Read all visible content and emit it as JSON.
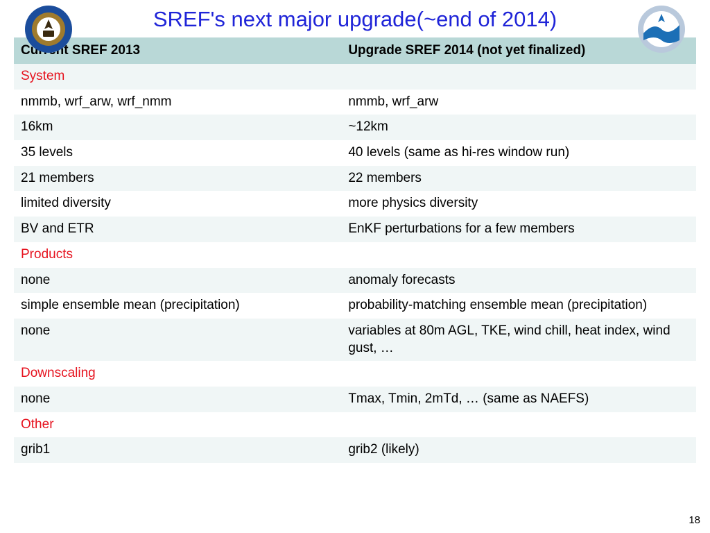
{
  "title": "SREF's next major upgrade(~end of 2014)",
  "title_color": "#1f24d8",
  "page_number": "18",
  "colors": {
    "header_bg": "#b9d8d7",
    "row_even": "#f0f6f6",
    "row_odd": "#ffffff",
    "section": "#e6131f",
    "text": "#000000"
  },
  "logos": {
    "left": {
      "outer": "#1b4d9c",
      "inner": "#9f7b2e",
      "center": "#ffffff"
    },
    "right": {
      "ring": "#b9c9dc",
      "wave": "#1c6fb6",
      "white": "#ffffff"
    }
  },
  "table": {
    "headers": [
      "Current SREF 2013",
      "Upgrade SREF 2014 (not yet finalized)"
    ],
    "rows": [
      {
        "type": "section",
        "left": "System",
        "right": ""
      },
      {
        "type": "data",
        "left": "nmmb, wrf_arw, wrf_nmm",
        "right": "nmmb, wrf_arw"
      },
      {
        "type": "data",
        "left": "16km",
        "right": "~12km"
      },
      {
        "type": "data",
        "left": "35 levels",
        "right": "40 levels (same as hi-res window run)"
      },
      {
        "type": "data",
        "left": "21 members",
        "right": "22 members"
      },
      {
        "type": "data",
        "left": "limited diversity",
        "right": "more physics diversity"
      },
      {
        "type": "data",
        "left": "BV and ETR",
        "right": "EnKF perturbations for a few members"
      },
      {
        "type": "section",
        "left": "Products",
        "right": ""
      },
      {
        "type": "data",
        "left": "none",
        "right": "anomaly forecasts"
      },
      {
        "type": "data",
        "left": "simple ensemble mean (precipitation)",
        "right": "probability-matching ensemble mean (precipitation)"
      },
      {
        "type": "data",
        "left": "none",
        "right": "variables at 80m AGL, TKE, wind chill, heat index, wind gust, …"
      },
      {
        "type": "section",
        "left": "Downscaling",
        "right": ""
      },
      {
        "type": "data",
        "left": "none",
        "right": "Tmax, Tmin, 2mTd, … (same as NAEFS)"
      },
      {
        "type": "section",
        "left": "Other",
        "right": ""
      },
      {
        "type": "data",
        "left": "grib1",
        "right": "grib2  (likely)"
      }
    ]
  }
}
